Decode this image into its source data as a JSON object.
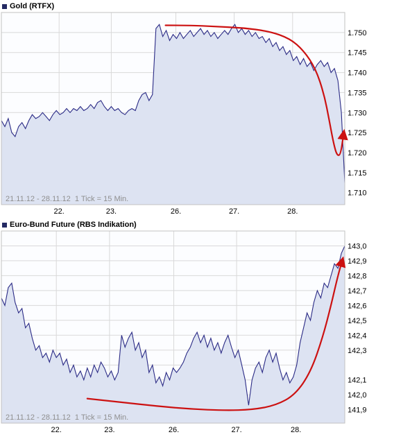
{
  "colors": {
    "line": "#2a2a85",
    "fill": "#dde3f2",
    "plot_bg": "#fcfdff",
    "grid": "#d9d9d9",
    "plot_border": "#c2c2c2",
    "axis_text": "#000000",
    "footer_text": "#8f8f8f",
    "title_square": "#242a63",
    "annotation": "#cc1111"
  },
  "chart_data": [
    {
      "id": "gold",
      "type": "line",
      "title": "Gold (RTFX)",
      "footer": "21.11.12 - 28.11.12  1 Tick = 15 Min.",
      "x_ticks": [
        {
          "label": "22.",
          "pos": 0.168
        },
        {
          "label": "23.",
          "pos": 0.32
        },
        {
          "label": "26.",
          "pos": 0.508
        },
        {
          "label": "27.",
          "pos": 0.678
        },
        {
          "label": "28.",
          "pos": 0.848
        }
      ],
      "ylim": [
        1707,
        1755
      ],
      "y_ticks": [
        {
          "v": 1750,
          "label": "1.750"
        },
        {
          "v": 1745,
          "label": "1.745"
        },
        {
          "v": 1740,
          "label": "1.740"
        },
        {
          "v": 1735,
          "label": "1.735"
        },
        {
          "v": 1730,
          "label": "1.730"
        },
        {
          "v": 1725,
          "label": "1.725"
        },
        {
          "v": 1720,
          "label": "1.720"
        },
        {
          "v": 1715,
          "label": "1.715"
        },
        {
          "v": 1710,
          "label": "1.710"
        }
      ],
      "values": [
        1728.0,
        1726.5,
        1728.5,
        1725.0,
        1724.0,
        1726.5,
        1727.5,
        1726.0,
        1728.0,
        1729.5,
        1728.5,
        1729.0,
        1730.0,
        1729.0,
        1728.0,
        1729.5,
        1730.5,
        1729.5,
        1730.0,
        1731.0,
        1730.0,
        1731.0,
        1730.5,
        1731.5,
        1730.5,
        1731.0,
        1732.0,
        1731.0,
        1732.5,
        1733.0,
        1731.5,
        1730.5,
        1731.5,
        1730.5,
        1731.0,
        1730.0,
        1729.5,
        1730.5,
        1731.0,
        1730.5,
        1733.0,
        1734.5,
        1735.0,
        1733.0,
        1734.5,
        1751.0,
        1752.0,
        1749.0,
        1750.5,
        1748.0,
        1749.5,
        1748.5,
        1750.0,
        1748.5,
        1749.5,
        1750.5,
        1749.0,
        1750.0,
        1751.0,
        1749.5,
        1750.5,
        1749.0,
        1750.0,
        1748.5,
        1749.5,
        1750.5,
        1749.5,
        1751.0,
        1752.0,
        1750.0,
        1751.0,
        1749.5,
        1750.5,
        1749.0,
        1750.0,
        1748.5,
        1749.0,
        1747.5,
        1748.5,
        1746.5,
        1747.5,
        1745.5,
        1746.5,
        1744.5,
        1745.5,
        1743.0,
        1744.0,
        1742.0,
        1743.5,
        1741.5,
        1742.5,
        1740.5,
        1742.0,
        1743.0,
        1741.5,
        1742.5,
        1740.0,
        1741.0,
        1738.0,
        1730.0,
        1712.5
      ],
      "annotation": [
        [
          0.478,
          1751.8
        ],
        [
          0.55,
          1751.8
        ],
        [
          0.62,
          1751.5
        ],
        [
          0.7,
          1751.2
        ],
        [
          0.78,
          1750.3
        ],
        [
          0.84,
          1748.5
        ],
        [
          0.88,
          1745.5
        ],
        [
          0.915,
          1741.0
        ],
        [
          0.94,
          1734.5
        ],
        [
          0.955,
          1728.0
        ],
        [
          0.968,
          1722.0
        ],
        [
          0.978,
          1719.2
        ],
        [
          0.988,
          1719.5
        ],
        [
          0.998,
          1725.5
        ]
      ]
    },
    {
      "id": "bund",
      "type": "line",
      "title": "Euro-Bund Future (RBS Indikation)",
      "footer": "21.11.12 - 28.11.12  1 Tick = 15 Min.",
      "x_ticks": [
        {
          "label": "22.",
          "pos": 0.16
        },
        {
          "label": "23.",
          "pos": 0.315
        },
        {
          "label": "26.",
          "pos": 0.502
        },
        {
          "label": "27.",
          "pos": 0.685
        },
        {
          "label": "28.",
          "pos": 0.858
        }
      ],
      "ylim": [
        141.81,
        143.1
      ],
      "y_ticks": [
        {
          "v": 143.0,
          "label": "143,0"
        },
        {
          "v": 142.9,
          "label": "142,9"
        },
        {
          "v": 142.8,
          "label": "142,8"
        },
        {
          "v": 142.7,
          "label": "142,7"
        },
        {
          "v": 142.6,
          "label": "142,6"
        },
        {
          "v": 142.5,
          "label": "142,5"
        },
        {
          "v": 142.4,
          "label": "142,4"
        },
        {
          "v": 142.3,
          "label": "142,3"
        },
        {
          "v": 142.2,
          "label": ""
        },
        {
          "v": 142.1,
          "label": "142,1"
        },
        {
          "v": 142.0,
          "label": "142,0"
        },
        {
          "v": 141.9,
          "label": "141,9"
        }
      ],
      "values": [
        142.65,
        142.6,
        142.72,
        142.75,
        142.62,
        142.55,
        142.58,
        142.45,
        142.48,
        142.38,
        142.3,
        142.33,
        142.25,
        142.28,
        142.22,
        142.3,
        142.25,
        142.28,
        142.2,
        142.24,
        142.15,
        142.2,
        142.12,
        142.16,
        142.1,
        142.18,
        142.12,
        142.2,
        142.15,
        142.22,
        142.18,
        142.12,
        142.16,
        142.1,
        142.15,
        142.4,
        142.32,
        142.38,
        142.42,
        142.3,
        142.35,
        142.25,
        142.3,
        142.15,
        142.2,
        142.08,
        142.12,
        142.06,
        142.15,
        142.1,
        142.18,
        142.15,
        142.18,
        142.22,
        142.28,
        142.32,
        142.38,
        142.42,
        142.35,
        142.4,
        142.32,
        142.38,
        142.3,
        142.35,
        142.28,
        142.35,
        142.4,
        142.32,
        142.25,
        142.3,
        142.2,
        142.1,
        141.93,
        142.1,
        142.18,
        142.22,
        142.15,
        142.25,
        142.3,
        142.22,
        142.28,
        142.18,
        142.1,
        142.15,
        142.08,
        142.12,
        142.2,
        142.35,
        142.45,
        142.55,
        142.5,
        142.62,
        142.7,
        142.65,
        142.75,
        142.72,
        142.8,
        142.88,
        142.85,
        142.95,
        143.0
      ],
      "annotation": [
        [
          0.25,
          141.975
        ],
        [
          0.35,
          141.95
        ],
        [
          0.45,
          141.925
        ],
        [
          0.55,
          141.905
        ],
        [
          0.65,
          141.895
        ],
        [
          0.73,
          141.9
        ],
        [
          0.8,
          141.93
        ],
        [
          0.855,
          142.0
        ],
        [
          0.9,
          142.15
        ],
        [
          0.935,
          142.38
        ],
        [
          0.96,
          142.6
        ],
        [
          0.98,
          142.8
        ],
        [
          0.995,
          142.92
        ]
      ]
    }
  ]
}
